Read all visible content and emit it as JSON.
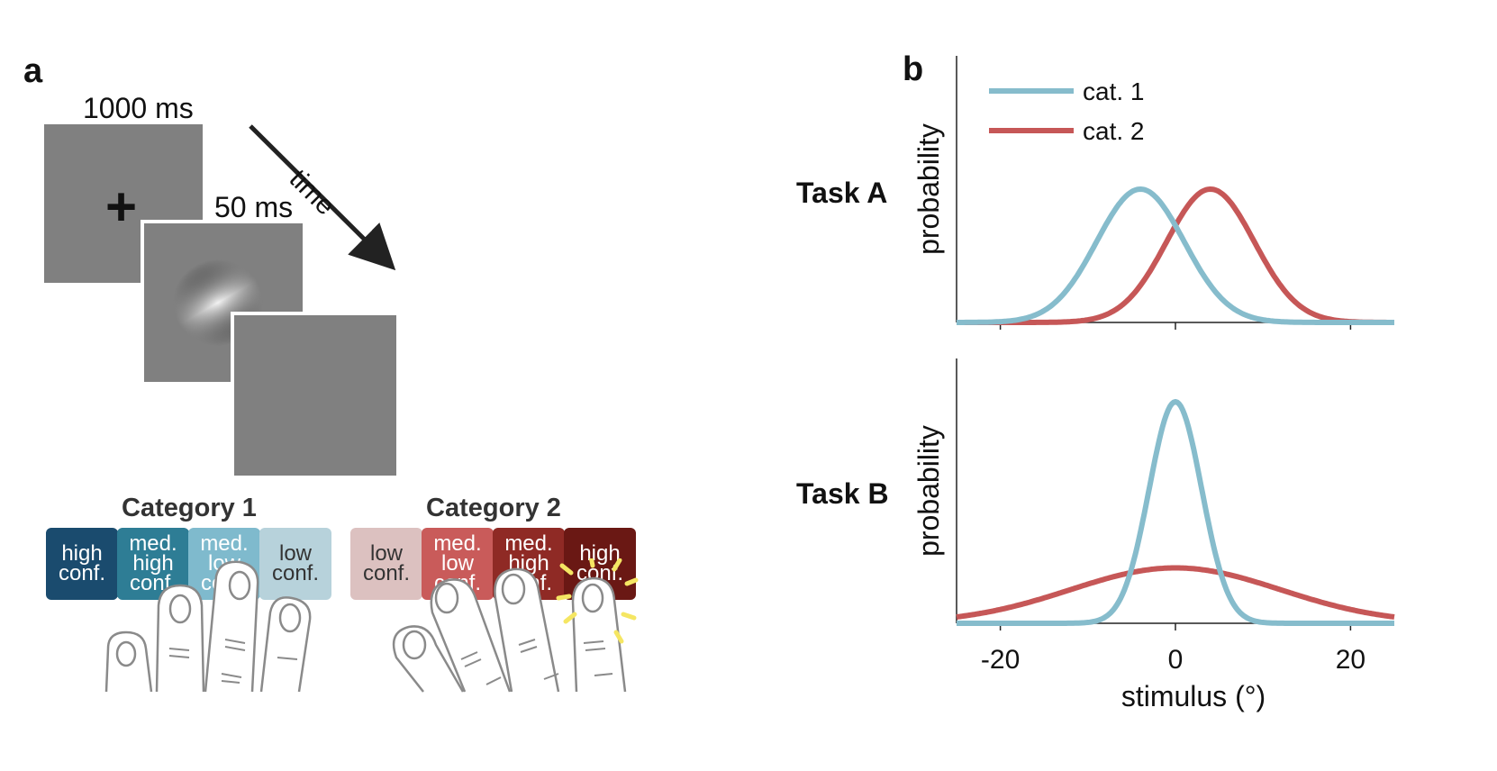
{
  "panel_a": {
    "letter": "a",
    "fixation": {
      "duration": "1000 ms",
      "symbol": "+"
    },
    "stimulus": {
      "duration": "50 ms"
    },
    "time_label": "time",
    "category1": {
      "title": "Category 1",
      "keys": [
        {
          "line1": "high",
          "line2": "conf.",
          "line3": "",
          "color": "#1a4b6e",
          "text_color": "#ffffff"
        },
        {
          "line1": "med.",
          "line2": "high",
          "line3": "conf.",
          "color": "#2e7d95",
          "text_color": "#ffffff"
        },
        {
          "line1": "med.",
          "line2": "low",
          "line3": "conf.",
          "color": "#7fbacd",
          "text_color": "#ffffff"
        },
        {
          "line1": "low",
          "line2": "conf.",
          "line3": "",
          "color": "#b7d2db",
          "text_color": "#333333"
        }
      ]
    },
    "category2": {
      "title": "Category 2",
      "keys": [
        {
          "line1": "low",
          "line2": "conf.",
          "line3": "",
          "color": "#dcc1c0",
          "text_color": "#333333"
        },
        {
          "line1": "med.",
          "line2": "low",
          "line3": "conf.",
          "color": "#c95b5a",
          "text_color": "#ffffff"
        },
        {
          "line1": "med.",
          "line2": "high",
          "line3": "conf.",
          "color": "#8f2a25",
          "text_color": "#ffffff"
        },
        {
          "line1": "high",
          "line2": "conf.",
          "line3": "",
          "color": "#6a1814",
          "text_color": "#ffffff"
        }
      ]
    }
  },
  "panel_b": {
    "letter": "b",
    "colors": {
      "cat1": "#86bccc",
      "cat2": "#c65757"
    }
  },
  "chart_data": [
    {
      "type": "line",
      "title": "Task A",
      "xlabel": "",
      "ylabel": "probability",
      "xlim": [
        -25,
        25
      ],
      "xticks": [
        -20,
        0,
        20
      ],
      "legend": {
        "position": "top-left",
        "entries": [
          "cat. 1",
          "cat. 2"
        ]
      },
      "series": [
        {
          "name": "cat. 1",
          "distribution": "normal",
          "mean": -4,
          "sd": 5,
          "color": "#86bccc"
        },
        {
          "name": "cat. 2",
          "distribution": "normal",
          "mean": 4,
          "sd": 5,
          "color": "#c65757"
        }
      ]
    },
    {
      "type": "line",
      "title": "Task B",
      "xlabel": "stimulus (°)",
      "ylabel": "probability",
      "xlim": [
        -25,
        25
      ],
      "xticks": [
        -20,
        0,
        20
      ],
      "xticklabels": [
        "-20",
        "0",
        "20"
      ],
      "series": [
        {
          "name": "cat. 1",
          "distribution": "normal",
          "mean": 0,
          "sd": 3,
          "color": "#86bccc"
        },
        {
          "name": "cat. 2",
          "distribution": "normal",
          "mean": 0,
          "sd": 12,
          "color": "#c65757"
        }
      ]
    }
  ]
}
